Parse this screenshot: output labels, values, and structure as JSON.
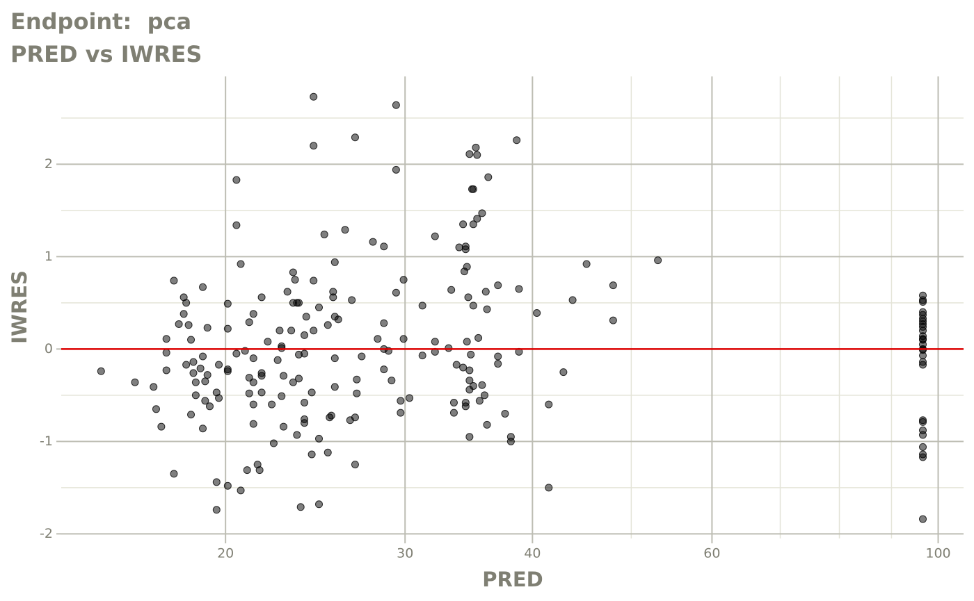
{
  "chart_data": {
    "type": "scatter",
    "title": "Endpoint:  pca",
    "subtitle": "PRED vs IWRES",
    "x_label": "PRED",
    "y_label": "IWRES",
    "xscale": "log",
    "xlim": [
      13.8,
      105.9
    ],
    "ylim": [
      -2.05,
      2.95
    ],
    "xticks": [
      20,
      30,
      40,
      60,
      100
    ],
    "xminorticks": [
      50,
      70,
      80,
      90
    ],
    "yticks": [
      -2,
      -1,
      0,
      1,
      2
    ],
    "yminorticks": [
      -1.5,
      -0.5,
      0.5,
      1.5,
      2.5
    ],
    "grid": true,
    "color": "#000000",
    "opacity": 0.5,
    "hline": 0,
    "hline_color": "#dd0000",
    "x": [
      15.1,
      16.3,
      17.0,
      17.1,
      17.3,
      17.5,
      17.5,
      17.5,
      17.8,
      17.8,
      18.0,
      18.2,
      18.2,
      18.3,
      18.3,
      18.4,
      18.5,
      18.5,
      18.6,
      18.6,
      18.7,
      18.7,
      18.9,
      19.0,
      19.0,
      19.0,
      19.1,
      19.1,
      19.2,
      19.2,
      19.3,
      19.6,
      19.6,
      19.6,
      19.7,
      19.7,
      20.1,
      20.1,
      20.1,
      20.1,
      20.1,
      20.5,
      20.5,
      20.5,
      20.7,
      20.7,
      20.9,
      21.0,
      21.1,
      21.1,
      21.1,
      21.3,
      21.3,
      21.3,
      21.3,
      21.3,
      21.5,
      21.6,
      21.7,
      21.7,
      21.7,
      21.7,
      22.0,
      22.2,
      22.3,
      22.5,
      22.6,
      22.7,
      22.7,
      22.7,
      22.8,
      22.8,
      23.0,
      23.2,
      23.3,
      23.3,
      23.3,
      23.4,
      23.5,
      23.5,
      23.6,
      23.6,
      23.6,
      23.7,
      23.9,
      23.9,
      23.9,
      23.9,
      23.9,
      24.0,
      24.3,
      24.3,
      24.4,
      24.4,
      24.4,
      24.4,
      24.7,
      24.7,
      24.7,
      25.0,
      25.2,
      25.2,
      25.3,
      25.4,
      25.5,
      25.5,
      25.6,
      25.6,
      25.6,
      25.6,
      25.8,
      26.2,
      26.5,
      26.6,
      26.8,
      26.8,
      26.8,
      26.9,
      26.9,
      27.2,
      27.9,
      28.2,
      28.6,
      28.6,
      28.6,
      28.6,
      28.9,
      29.1,
      29.4,
      29.4,
      29.4,
      29.7,
      29.7,
      29.9,
      29.9,
      30.3,
      31.2,
      31.2,
      32.1,
      32.1,
      32.1,
      33.1,
      33.3,
      33.5,
      33.5,
      33.7,
      33.9,
      34.2,
      34.2,
      34.3,
      34.4,
      34.4,
      34.4,
      34.4,
      34.5,
      34.5,
      34.6,
      34.7,
      34.7,
      34.7,
      34.7,
      34.7,
      34.8,
      34.9,
      35.0,
      35.0,
      35.0,
      35.0,
      35.2,
      35.3,
      35.3,
      35.4,
      35.5,
      35.7,
      35.7,
      35.9,
      36.0,
      36.1,
      36.1,
      36.2,
      37.0,
      37.0,
      37.0,
      37.6,
      38.1,
      38.1,
      38.6,
      38.8,
      38.8,
      40.4,
      41.5,
      41.5,
      42.9,
      43.8,
      45.2,
      48.0,
      48.0,
      53.1,
      96.6,
      96.6,
      96.6,
      96.6,
      96.6,
      96.6,
      96.6,
      96.6,
      96.6,
      96.6,
      96.6,
      96.6,
      96.6,
      96.6,
      96.6,
      96.6,
      96.6,
      96.6,
      96.6,
      96.6,
      96.6,
      96.6,
      96.6,
      96.6,
      96.6,
      96.6,
      96.6
    ],
    "values": [
      -0.24,
      -0.36,
      -0.41,
      -0.65,
      -0.84,
      0.11,
      -0.04,
      -0.23,
      0.74,
      -1.35,
      0.27,
      0.38,
      0.56,
      0.5,
      -0.17,
      0.26,
      0.1,
      -0.71,
      -0.14,
      -0.26,
      -0.36,
      -0.5,
      -0.21,
      -0.86,
      0.67,
      -0.08,
      -0.35,
      -0.56,
      0.23,
      -0.28,
      -0.62,
      -0.47,
      -1.44,
      -1.74,
      -0.17,
      -0.53,
      0.22,
      -0.22,
      -0.24,
      -1.48,
      0.49,
      1.83,
      1.34,
      -0.05,
      0.92,
      -1.53,
      -0.02,
      -1.31,
      0.29,
      -0.31,
      -0.48,
      -0.36,
      0.38,
      -0.1,
      -0.6,
      -0.81,
      -1.25,
      -1.31,
      0.56,
      -0.26,
      -0.29,
      -0.47,
      0.08,
      -0.6,
      -1.02,
      -0.12,
      0.2,
      0.03,
      -0.51,
      0.01,
      -0.29,
      -0.84,
      0.62,
      0.2,
      0.83,
      0.5,
      -0.36,
      0.75,
      0.5,
      -0.93,
      0.5,
      -0.06,
      -0.32,
      -1.71,
      0.15,
      -0.05,
      -0.58,
      -0.76,
      -0.8,
      0.35,
      -0.47,
      -1.14,
      2.73,
      2.2,
      0.2,
      0.74,
      0.45,
      -0.97,
      -1.68,
      1.24,
      0.26,
      -1.12,
      -0.74,
      -0.72,
      0.62,
      0.56,
      0.94,
      -0.1,
      0.35,
      -0.41,
      0.32,
      1.29,
      -0.77,
      0.53,
      2.29,
      -0.74,
      -1.25,
      -0.33,
      -0.48,
      -0.08,
      1.16,
      0.11,
      1.11,
      0.28,
      0.0,
      -0.22,
      -0.02,
      -0.34,
      2.64,
      1.94,
      0.61,
      -0.56,
      -0.69,
      0.75,
      0.11,
      -0.53,
      0.47,
      -0.07,
      1.22,
      0.08,
      -0.03,
      0.01,
      0.64,
      -0.58,
      -0.69,
      -0.17,
      1.1,
      1.35,
      -0.2,
      0.84,
      1.11,
      1.08,
      -0.58,
      -0.62,
      0.89,
      0.08,
      0.56,
      2.11,
      -0.95,
      -0.23,
      -0.34,
      -0.44,
      -0.06,
      1.73,
      1.73,
      1.35,
      0.47,
      -0.4,
      2.18,
      2.1,
      1.41,
      0.12,
      -0.56,
      1.47,
      -0.39,
      -0.5,
      0.62,
      0.43,
      -0.82,
      1.86,
      0.69,
      -0.08,
      -0.16,
      -0.7,
      -0.95,
      -1.0,
      2.26,
      0.65,
      -0.03,
      0.39,
      -0.6,
      -1.5,
      -0.25,
      0.53,
      0.92,
      0.69,
      0.31,
      0.96,
      0.58,
      0.53,
      0.51,
      0.4,
      0.37,
      0.33,
      0.3,
      0.27,
      0.24,
      0.2,
      0.14,
      0.11,
      0.1,
      0.05,
      0.0,
      -0.01,
      -0.07,
      -0.14,
      -0.17,
      -0.77,
      -0.79,
      -0.88,
      -0.93,
      -1.06,
      -1.14,
      -1.17,
      -1.84
    ]
  }
}
